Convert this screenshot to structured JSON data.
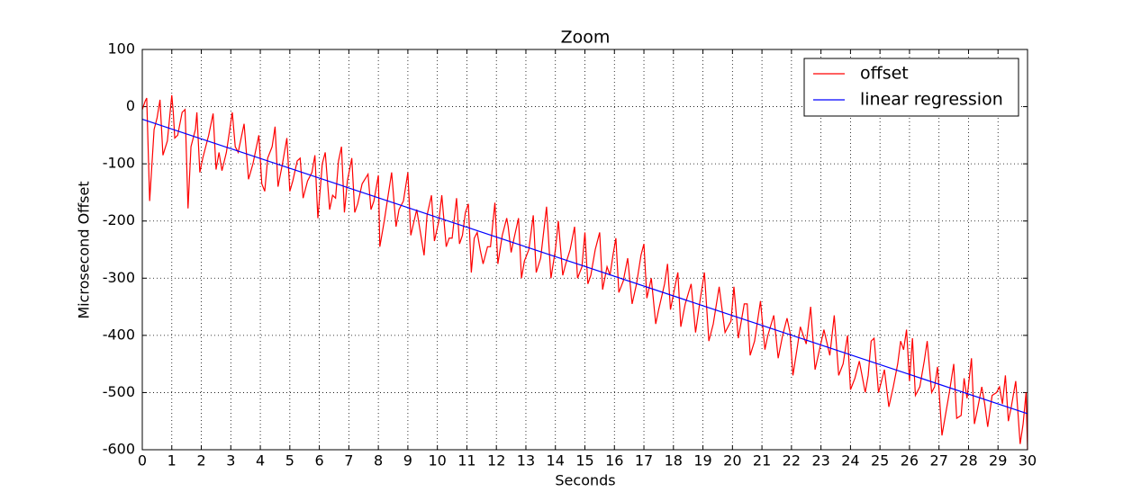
{
  "chart_data": {
    "type": "line",
    "title": "Zoom",
    "xlabel": "Seconds",
    "ylabel": "Microsecond Offset",
    "xlim": [
      0,
      30
    ],
    "ylim": [
      -600,
      100
    ],
    "xticks": [
      0,
      1,
      2,
      3,
      4,
      5,
      6,
      7,
      8,
      9,
      10,
      11,
      12,
      13,
      14,
      15,
      16,
      17,
      18,
      19,
      20,
      21,
      22,
      23,
      24,
      25,
      26,
      27,
      28,
      29,
      30
    ],
    "yticks": [
      -600,
      -500,
      -400,
      -300,
      -200,
      -100,
      0,
      100
    ],
    "grid": true,
    "legend": "upper right",
    "series": [
      {
        "name": "offset",
        "color": "#ff0000",
        "x": [
          0,
          0.1,
          0.15,
          0.25,
          0.4,
          0.5,
          0.6,
          0.7,
          0.85,
          1.0,
          1.05,
          1.1,
          1.2,
          1.35,
          1.45,
          1.55,
          1.65,
          1.8,
          1.85,
          1.95,
          2.05,
          2.25,
          2.4,
          2.5,
          2.6,
          2.7,
          2.85,
          3.05,
          3.15,
          3.25,
          3.45,
          3.6,
          3.75,
          3.95,
          4.05,
          4.15,
          4.25,
          4.4,
          4.5,
          4.6,
          4.75,
          4.9,
          5.0,
          5.1,
          5.25,
          5.35,
          5.45,
          5.6,
          5.75,
          5.85,
          5.95,
          6.1,
          6.2,
          6.35,
          6.45,
          6.55,
          6.65,
          6.75,
          6.85,
          6.95,
          7.1,
          7.2,
          7.3,
          7.45,
          7.65,
          7.75,
          7.85,
          8.0,
          8.05,
          8.2,
          8.45,
          8.6,
          8.7,
          8.85,
          9.0,
          9.1,
          9.3,
          9.55,
          9.65,
          9.8,
          9.9,
          10.05,
          10.15,
          10.3,
          10.4,
          10.5,
          10.65,
          10.75,
          10.85,
          10.95,
          11.05,
          11.15,
          11.25,
          11.35,
          11.45,
          11.55,
          11.7,
          11.8,
          11.95,
          12.05,
          12.2,
          12.35,
          12.4,
          12.5,
          12.6,
          12.75,
          12.85,
          12.95,
          13.1,
          13.25,
          13.35,
          13.5,
          13.7,
          13.85,
          14.0,
          14.1,
          14.25,
          14.35,
          14.5,
          14.65,
          14.75,
          14.9,
          15.0,
          15.1,
          15.2,
          15.35,
          15.5,
          15.6,
          15.75,
          15.85,
          15.95,
          16.05,
          16.15,
          16.3,
          16.45,
          16.6,
          16.75,
          16.9,
          17.0,
          17.1,
          17.25,
          17.4,
          17.5,
          17.7,
          17.8,
          17.9,
          18.05,
          18.15,
          18.25,
          18.4,
          18.6,
          18.75,
          18.9,
          19.05,
          19.2,
          19.35,
          19.55,
          19.75,
          19.95,
          20.05,
          20.2,
          20.4,
          20.5,
          20.6,
          20.75,
          20.95,
          21.1,
          21.2,
          21.4,
          21.55,
          21.7,
          21.85,
          21.95,
          22.05,
          22.2,
          22.3,
          22.5,
          22.65,
          22.8,
          22.95,
          23.1,
          23.3,
          23.45,
          23.6,
          23.75,
          23.9,
          24.0,
          24.15,
          24.3,
          24.5,
          24.6,
          24.7,
          24.8,
          24.95,
          25.05,
          25.15,
          25.3,
          25.45,
          25.6,
          25.7,
          25.8,
          25.9,
          26.0,
          26.1,
          26.2,
          26.35,
          26.5,
          26.6,
          26.75,
          26.85,
          26.95,
          27.1,
          27.2,
          27.35,
          27.5,
          27.6,
          27.75,
          27.85,
          27.95,
          28.1,
          28.2,
          28.3,
          28.45,
          28.55,
          28.65,
          28.8,
          28.95,
          29.05,
          29.15,
          29.25,
          29.35,
          29.45,
          29.6,
          29.75,
          29.85,
          29.95,
          30.0
        ],
        "values": [
          -5,
          10,
          15,
          -165,
          -40,
          -20,
          12,
          -85,
          -60,
          20,
          -10,
          -55,
          -50,
          -10,
          -5,
          -178,
          -70,
          -40,
          -10,
          -115,
          -90,
          -50,
          -12,
          -110,
          -80,
          -112,
          -80,
          -10,
          -70,
          -80,
          -30,
          -127,
          -100,
          -50,
          -135,
          -148,
          -90,
          -70,
          -35,
          -140,
          -100,
          -55,
          -148,
          -130,
          -95,
          -90,
          -160,
          -130,
          -115,
          -85,
          -195,
          -100,
          -80,
          -180,
          -155,
          -160,
          -95,
          -70,
          -185,
          -130,
          -90,
          -185,
          -170,
          -135,
          -118,
          -180,
          -165,
          -120,
          -245,
          -200,
          -115,
          -210,
          -180,
          -165,
          -115,
          -225,
          -180,
          -260,
          -190,
          -155,
          -235,
          -200,
          -155,
          -245,
          -230,
          -230,
          -160,
          -240,
          -225,
          -185,
          -170,
          -290,
          -230,
          -220,
          -250,
          -275,
          -245,
          -245,
          -168,
          -275,
          -225,
          -195,
          -210,
          -255,
          -230,
          -195,
          -300,
          -270,
          -250,
          -190,
          -290,
          -265,
          -175,
          -300,
          -250,
          -200,
          -295,
          -275,
          -250,
          -210,
          -300,
          -280,
          -220,
          -310,
          -295,
          -250,
          -220,
          -320,
          -280,
          -295,
          -260,
          -230,
          -325,
          -305,
          -265,
          -345,
          -310,
          -260,
          -240,
          -335,
          -300,
          -380,
          -355,
          -310,
          -275,
          -355,
          -315,
          -290,
          -385,
          -345,
          -310,
          -395,
          -340,
          -290,
          -410,
          -380,
          -315,
          -395,
          -375,
          -315,
          -405,
          -345,
          -345,
          -435,
          -410,
          -340,
          -425,
          -400,
          -365,
          -440,
          -400,
          -370,
          -395,
          -470,
          -420,
          -385,
          -415,
          -350,
          -460,
          -425,
          -390,
          -435,
          -365,
          -470,
          -450,
          -400,
          -495,
          -475,
          -445,
          -500,
          -470,
          -410,
          -405,
          -500,
          -480,
          -460,
          -525,
          -490,
          -450,
          -410,
          -425,
          -390,
          -480,
          -405,
          -505,
          -490,
          -445,
          -410,
          -500,
          -490,
          -455,
          -575,
          -545,
          -500,
          -450,
          -545,
          -540,
          -475,
          -510,
          -440,
          -555,
          -530,
          -490,
          -520,
          -560,
          -505,
          -500,
          -490,
          -520,
          -470,
          -550,
          -525,
          -480,
          -590,
          -555,
          -500,
          -600
        ]
      },
      {
        "name": "linear regression",
        "color": "#0000ff",
        "x": [
          0,
          30
        ],
        "values": [
          -22,
          -537
        ]
      }
    ]
  }
}
